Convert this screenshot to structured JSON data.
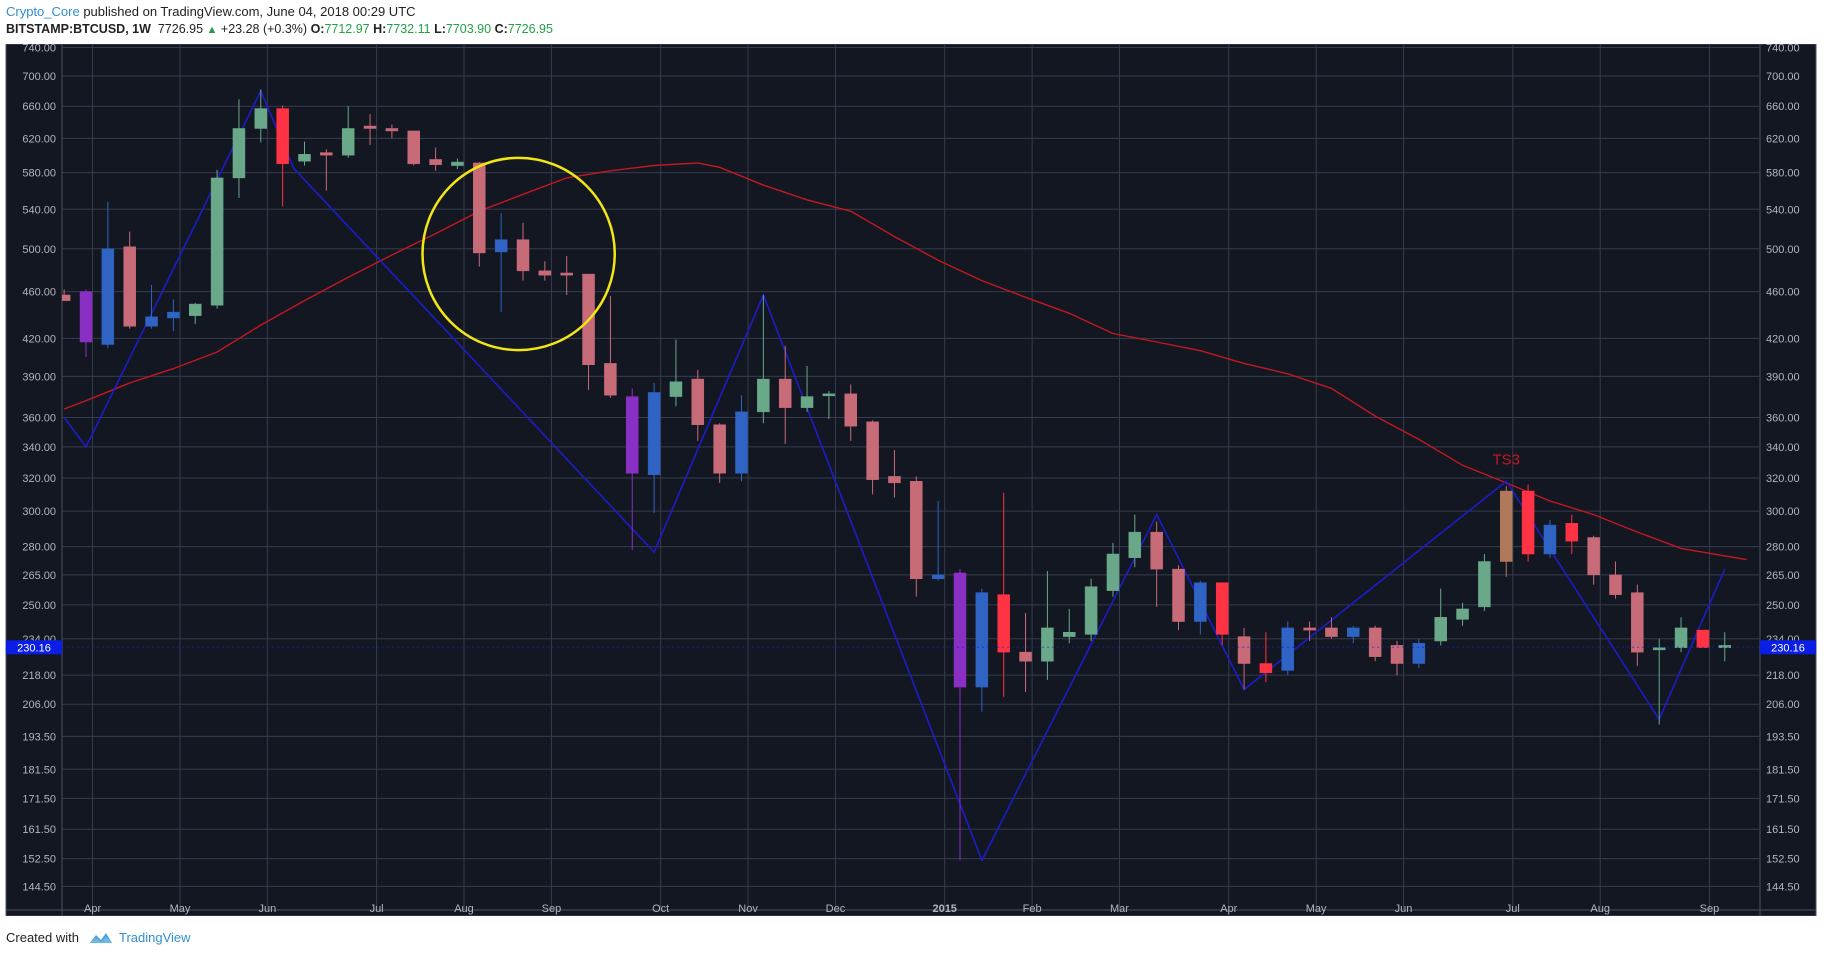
{
  "header": {
    "author": "Crypto_Core",
    "published_text": "published on TradingView.com, June 04, 2018 00:29 UTC",
    "symbol": "BITSTAMP:BTCUSD, 1W",
    "price": "7726.95",
    "change": "+23.28 (+0.3%)",
    "o_label": "O:",
    "o_value": "7712.97",
    "h_label": "H:",
    "h_value": "7732.11",
    "l_label": "L:",
    "l_value": "7703.90",
    "c_label": "C:",
    "c_value": "7726.95"
  },
  "footer": {
    "created_with": "Created with",
    "brand": "TradingView"
  },
  "chart_data": {
    "type": "candlestick",
    "scale": "log",
    "ylim": [
      138,
      745
    ],
    "y_ticks": [
      "740.00",
      "700.00",
      "660.00",
      "620.00",
      "580.00",
      "540.00",
      "500.00",
      "460.00",
      "420.00",
      "390.00",
      "360.00",
      "340.00",
      "320.00",
      "300.00",
      "280.00",
      "265.00",
      "250.00",
      "234.00",
      "218.00",
      "206.00",
      "193.50",
      "181.50",
      "171.50",
      "161.50",
      "152.50",
      "144.50"
    ],
    "y_tick_values": [
      740,
      700,
      660,
      620,
      580,
      540,
      500,
      460,
      420,
      390,
      360,
      340,
      320,
      300,
      280,
      265,
      250,
      234,
      218,
      206,
      193.5,
      181.5,
      171.5,
      161.5,
      152.5,
      144.5
    ],
    "x_ticks": [
      {
        "label": "Apr",
        "week": 0.3
      },
      {
        "label": "May",
        "week": 4.3
      },
      {
        "label": "Jun",
        "week": 8.3
      },
      {
        "label": "Jul",
        "week": 13.3
      },
      {
        "label": "Aug",
        "week": 17.3
      },
      {
        "label": "Sep",
        "week": 21.3
      },
      {
        "label": "Oct",
        "week": 26.3
      },
      {
        "label": "Nov",
        "week": 30.3
      },
      {
        "label": "Dec",
        "week": 34.3
      },
      {
        "label": "2015",
        "week": 39.3,
        "bold": true
      },
      {
        "label": "Feb",
        "week": 43.3
      },
      {
        "label": "Mar",
        "week": 47.3
      },
      {
        "label": "Apr",
        "week": 52.3
      },
      {
        "label": "May",
        "week": 56.3
      },
      {
        "label": "Jun",
        "week": 60.3
      },
      {
        "label": "Jul",
        "week": 65.3
      },
      {
        "label": "Aug",
        "week": 69.3
      },
      {
        "label": "Sep",
        "week": 74.3
      }
    ],
    "price_label": "230.16",
    "price_value": 230.16,
    "annotation": {
      "text": "TS3",
      "week": 65,
      "price": 326
    },
    "circle": {
      "center_week": 19.8,
      "center_price": 495,
      "radius_weeks": 4.4
    },
    "candles": [
      {
        "o": 457,
        "h": 462,
        "l": 453,
        "c": 452,
        "color": "#c86b78"
      },
      {
        "o": 460,
        "h": 462,
        "l": 405,
        "c": 417,
        "color": "#8a2fc4"
      },
      {
        "o": 415,
        "h": 548,
        "l": 412,
        "c": 500,
        "color": "#2f63c4"
      },
      {
        "o": 502,
        "h": 517,
        "l": 428,
        "c": 430,
        "color": "#c86b78"
      },
      {
        "o": 430,
        "h": 466,
        "l": 428,
        "c": 438,
        "color": "#2f63c4"
      },
      {
        "o": 437,
        "h": 453,
        "l": 426,
        "c": 442,
        "color": "#2f63c4"
      },
      {
        "o": 439,
        "h": 450,
        "l": 432,
        "c": 449,
        "color": "#6aa88a"
      },
      {
        "o": 448,
        "h": 583,
        "l": 445,
        "c": 574,
        "color": "#6aa88a"
      },
      {
        "o": 574,
        "h": 669,
        "l": 552,
        "c": 632,
        "color": "#6aa88a"
      },
      {
        "o": 632,
        "h": 682,
        "l": 615,
        "c": 657,
        "color": "#6aa88a"
      },
      {
        "o": 657,
        "h": 661,
        "l": 543,
        "c": 590,
        "color": "#ff3344"
      },
      {
        "o": 593,
        "h": 616,
        "l": 588,
        "c": 601,
        "color": "#6aa88a"
      },
      {
        "o": 600,
        "h": 607,
        "l": 560,
        "c": 603,
        "color": "#c86b78"
      },
      {
        "o": 600,
        "h": 660,
        "l": 597,
        "c": 632,
        "color": "#6aa88a"
      },
      {
        "o": 635,
        "h": 650,
        "l": 612,
        "c": 632,
        "color": "#c86b78"
      },
      {
        "o": 632,
        "h": 637,
        "l": 620,
        "c": 629,
        "color": "#c86b78"
      },
      {
        "o": 629,
        "h": 628,
        "l": 588,
        "c": 590,
        "color": "#c86b78"
      },
      {
        "o": 595,
        "h": 609,
        "l": 582,
        "c": 589,
        "color": "#c86b78"
      },
      {
        "o": 588,
        "h": 596,
        "l": 584,
        "c": 592,
        "color": "#6aa88a"
      },
      {
        "o": 591,
        "h": 592,
        "l": 483,
        "c": 496,
        "color": "#c86b78"
      },
      {
        "o": 497,
        "h": 536,
        "l": 442,
        "c": 509,
        "color": "#2f63c4"
      },
      {
        "o": 509,
        "h": 526,
        "l": 470,
        "c": 479,
        "color": "#c86b78"
      },
      {
        "o": 479,
        "h": 488,
        "l": 470,
        "c": 475,
        "color": "#c86b78"
      },
      {
        "o": 477,
        "h": 493,
        "l": 457,
        "c": 475,
        "color": "#c86b78"
      },
      {
        "o": 476,
        "h": 475,
        "l": 380,
        "c": 399,
        "color": "#c86b78"
      },
      {
        "o": 400,
        "h": 456,
        "l": 374,
        "c": 376,
        "color": "#c86b78"
      },
      {
        "o": 375,
        "h": 381,
        "l": 278,
        "c": 323,
        "color": "#8a2fc4"
      },
      {
        "o": 322,
        "h": 385,
        "l": 299,
        "c": 378,
        "color": "#2f63c4"
      },
      {
        "o": 375,
        "h": 419,
        "l": 368,
        "c": 386,
        "color": "#6aa88a"
      },
      {
        "o": 388,
        "h": 395,
        "l": 344,
        "c": 355,
        "color": "#c86b78"
      },
      {
        "o": 355,
        "h": 356,
        "l": 317,
        "c": 323,
        "color": "#c86b78"
      },
      {
        "o": 323,
        "h": 376,
        "l": 318,
        "c": 364,
        "color": "#2f63c4"
      },
      {
        "o": 364,
        "h": 457,
        "l": 356,
        "c": 388,
        "color": "#6aa88a"
      },
      {
        "o": 388,
        "h": 414,
        "l": 342,
        "c": 367,
        "color": "#c86b78"
      },
      {
        "o": 367,
        "h": 398,
        "l": 364,
        "c": 375,
        "color": "#6aa88a"
      },
      {
        "o": 376,
        "h": 379,
        "l": 359,
        "c": 377,
        "color": "#6aa88a"
      },
      {
        "o": 377,
        "h": 384,
        "l": 344,
        "c": 354,
        "color": "#c86b78"
      },
      {
        "o": 357,
        "h": 358,
        "l": 310,
        "c": 319,
        "color": "#c86b78"
      },
      {
        "o": 321,
        "h": 338,
        "l": 308,
        "c": 317,
        "color": "#c86b78"
      },
      {
        "o": 318,
        "h": 321,
        "l": 254,
        "c": 263,
        "color": "#c86b78"
      },
      {
        "o": 263,
        "h": 306,
        "l": 262,
        "c": 265,
        "color": "#2f63c4"
      },
      {
        "o": 266,
        "h": 268,
        "l": 152,
        "c": 213,
        "color": "#8a2fc4"
      },
      {
        "o": 213,
        "h": 258,
        "l": 203,
        "c": 256,
        "color": "#2f63c4"
      },
      {
        "o": 255,
        "h": 311,
        "l": 209,
        "c": 228,
        "color": "#ff3344"
      },
      {
        "o": 228,
        "h": 246,
        "l": 211,
        "c": 224,
        "color": "#c86b78"
      },
      {
        "o": 224,
        "h": 267,
        "l": 216,
        "c": 239,
        "color": "#6aa88a"
      },
      {
        "o": 235,
        "h": 248,
        "l": 232,
        "c": 237,
        "color": "#6aa88a"
      },
      {
        "o": 236,
        "h": 263,
        "l": 233,
        "c": 259,
        "color": "#6aa88a"
      },
      {
        "o": 257,
        "h": 282,
        "l": 254,
        "c": 276,
        "color": "#6aa88a"
      },
      {
        "o": 274,
        "h": 298,
        "l": 269,
        "c": 288,
        "color": "#6aa88a"
      },
      {
        "o": 288,
        "h": 294,
        "l": 249,
        "c": 268,
        "color": "#c86b78"
      },
      {
        "o": 268,
        "h": 270,
        "l": 238,
        "c": 242,
        "color": "#c86b78"
      },
      {
        "o": 242,
        "h": 262,
        "l": 236,
        "c": 261,
        "color": "#2f63c4"
      },
      {
        "o": 261,
        "h": 261,
        "l": 231,
        "c": 236,
        "color": "#ff3344"
      },
      {
        "o": 235,
        "h": 239,
        "l": 212,
        "c": 223,
        "color": "#c86b78"
      },
      {
        "o": 223,
        "h": 237,
        "l": 215,
        "c": 219,
        "color": "#ff3344"
      },
      {
        "o": 220,
        "h": 242,
        "l": 218,
        "c": 239,
        "color": "#2f63c4"
      },
      {
        "o": 238,
        "h": 242,
        "l": 233,
        "c": 239,
        "color": "#c86b78"
      },
      {
        "o": 239,
        "h": 244,
        "l": 234,
        "c": 235,
        "color": "#c86b78"
      },
      {
        "o": 235,
        "h": 240,
        "l": 232,
        "c": 239,
        "color": "#2f63c4"
      },
      {
        "o": 239,
        "h": 240,
        "l": 224,
        "c": 226,
        "color": "#c86b78"
      },
      {
        "o": 231,
        "h": 233,
        "l": 218,
        "c": 223,
        "color": "#c86b78"
      },
      {
        "o": 223,
        "h": 234,
        "l": 221,
        "c": 232,
        "color": "#2f63c4"
      },
      {
        "o": 233,
        "h": 258,
        "l": 231,
        "c": 244,
        "color": "#6aa88a"
      },
      {
        "o": 243,
        "h": 251,
        "l": 240,
        "c": 248,
        "color": "#6aa88a"
      },
      {
        "o": 249,
        "h": 276,
        "l": 247,
        "c": 272,
        "color": "#6aa88a"
      },
      {
        "o": 272,
        "h": 315,
        "l": 264,
        "c": 312,
        "color": "#b07a5a"
      },
      {
        "o": 312,
        "h": 316,
        "l": 272,
        "c": 276,
        "color": "#ff3344"
      },
      {
        "o": 276,
        "h": 295,
        "l": 274,
        "c": 292,
        "color": "#2f63c4"
      },
      {
        "o": 293,
        "h": 298,
        "l": 276,
        "c": 283,
        "color": "#ff3344"
      },
      {
        "o": 285,
        "h": 286,
        "l": 260,
        "c": 265,
        "color": "#c86b78"
      },
      {
        "o": 265,
        "h": 272,
        "l": 253,
        "c": 255,
        "color": "#c86b78"
      },
      {
        "o": 256,
        "h": 260,
        "l": 222,
        "c": 228,
        "color": "#c86b78"
      },
      {
        "o": 229,
        "h": 234,
        "l": 198,
        "c": 230,
        "color": "#6aa88a"
      },
      {
        "o": 230,
        "h": 244,
        "l": 228,
        "c": 239,
        "color": "#6aa88a"
      },
      {
        "o": 238,
        "h": 238,
        "l": 230,
        "c": 230,
        "color": "#ff3344"
      },
      {
        "o": 231,
        "h": 237,
        "l": 224,
        "c": 230,
        "color": "#6aa88a"
      }
    ],
    "ma_series": [
      {
        "w": -1,
        "v": 366
      },
      {
        "w": 0,
        "v": 372
      },
      {
        "w": 2,
        "v": 385
      },
      {
        "w": 4,
        "v": 396
      },
      {
        "w": 6,
        "v": 409
      },
      {
        "w": 8,
        "v": 431
      },
      {
        "w": 10,
        "v": 452
      },
      {
        "w": 12,
        "v": 473
      },
      {
        "w": 14,
        "v": 494
      },
      {
        "w": 16,
        "v": 515
      },
      {
        "w": 18,
        "v": 538
      },
      {
        "w": 20,
        "v": 556
      },
      {
        "w": 22,
        "v": 574
      },
      {
        "w": 24,
        "v": 582
      },
      {
        "w": 26,
        "v": 588
      },
      {
        "w": 28,
        "v": 591
      },
      {
        "w": 29,
        "v": 586
      },
      {
        "w": 31,
        "v": 566
      },
      {
        "w": 33,
        "v": 550
      },
      {
        "w": 35,
        "v": 538
      },
      {
        "w": 37,
        "v": 512
      },
      {
        "w": 39,
        "v": 489
      },
      {
        "w": 41,
        "v": 470
      },
      {
        "w": 43,
        "v": 455
      },
      {
        "w": 45,
        "v": 441
      },
      {
        "w": 47,
        "v": 424
      },
      {
        "w": 49,
        "v": 417
      },
      {
        "w": 51,
        "v": 410
      },
      {
        "w": 53,
        "v": 400
      },
      {
        "w": 55,
        "v": 392
      },
      {
        "w": 57,
        "v": 381
      },
      {
        "w": 59,
        "v": 361
      },
      {
        "w": 61,
        "v": 345
      },
      {
        "w": 63,
        "v": 328
      },
      {
        "w": 65,
        "v": 317
      },
      {
        "w": 67,
        "v": 306
      },
      {
        "w": 69,
        "v": 298
      },
      {
        "w": 71,
        "v": 288
      },
      {
        "w": 73,
        "v": 279
      },
      {
        "w": 75,
        "v": 275
      },
      {
        "w": 76,
        "v": 273
      }
    ],
    "zigzag": [
      {
        "w": -1,
        "v": 360
      },
      {
        "w": 0,
        "v": 340
      },
      {
        "w": 8,
        "v": 680
      },
      {
        "w": 9.5,
        "v": 585
      },
      {
        "w": 26,
        "v": 277
      },
      {
        "w": 31,
        "v": 457
      },
      {
        "w": 41,
        "v": 152
      },
      {
        "w": 49,
        "v": 298
      },
      {
        "w": 53,
        "v": 212
      },
      {
        "w": 65,
        "v": 318
      },
      {
        "w": 72,
        "v": 200
      },
      {
        "w": 75,
        "v": 268
      }
    ],
    "colors": {
      "background": "#131722",
      "grid": "#363c4e",
      "axis_text": "#b2b5be",
      "ma_line": "#c4181f",
      "zigzag_line": "#1c1cc8",
      "circle": "#f2e614",
      "annotation": "#c4181f",
      "price_tag": "#0a1ee6"
    }
  }
}
